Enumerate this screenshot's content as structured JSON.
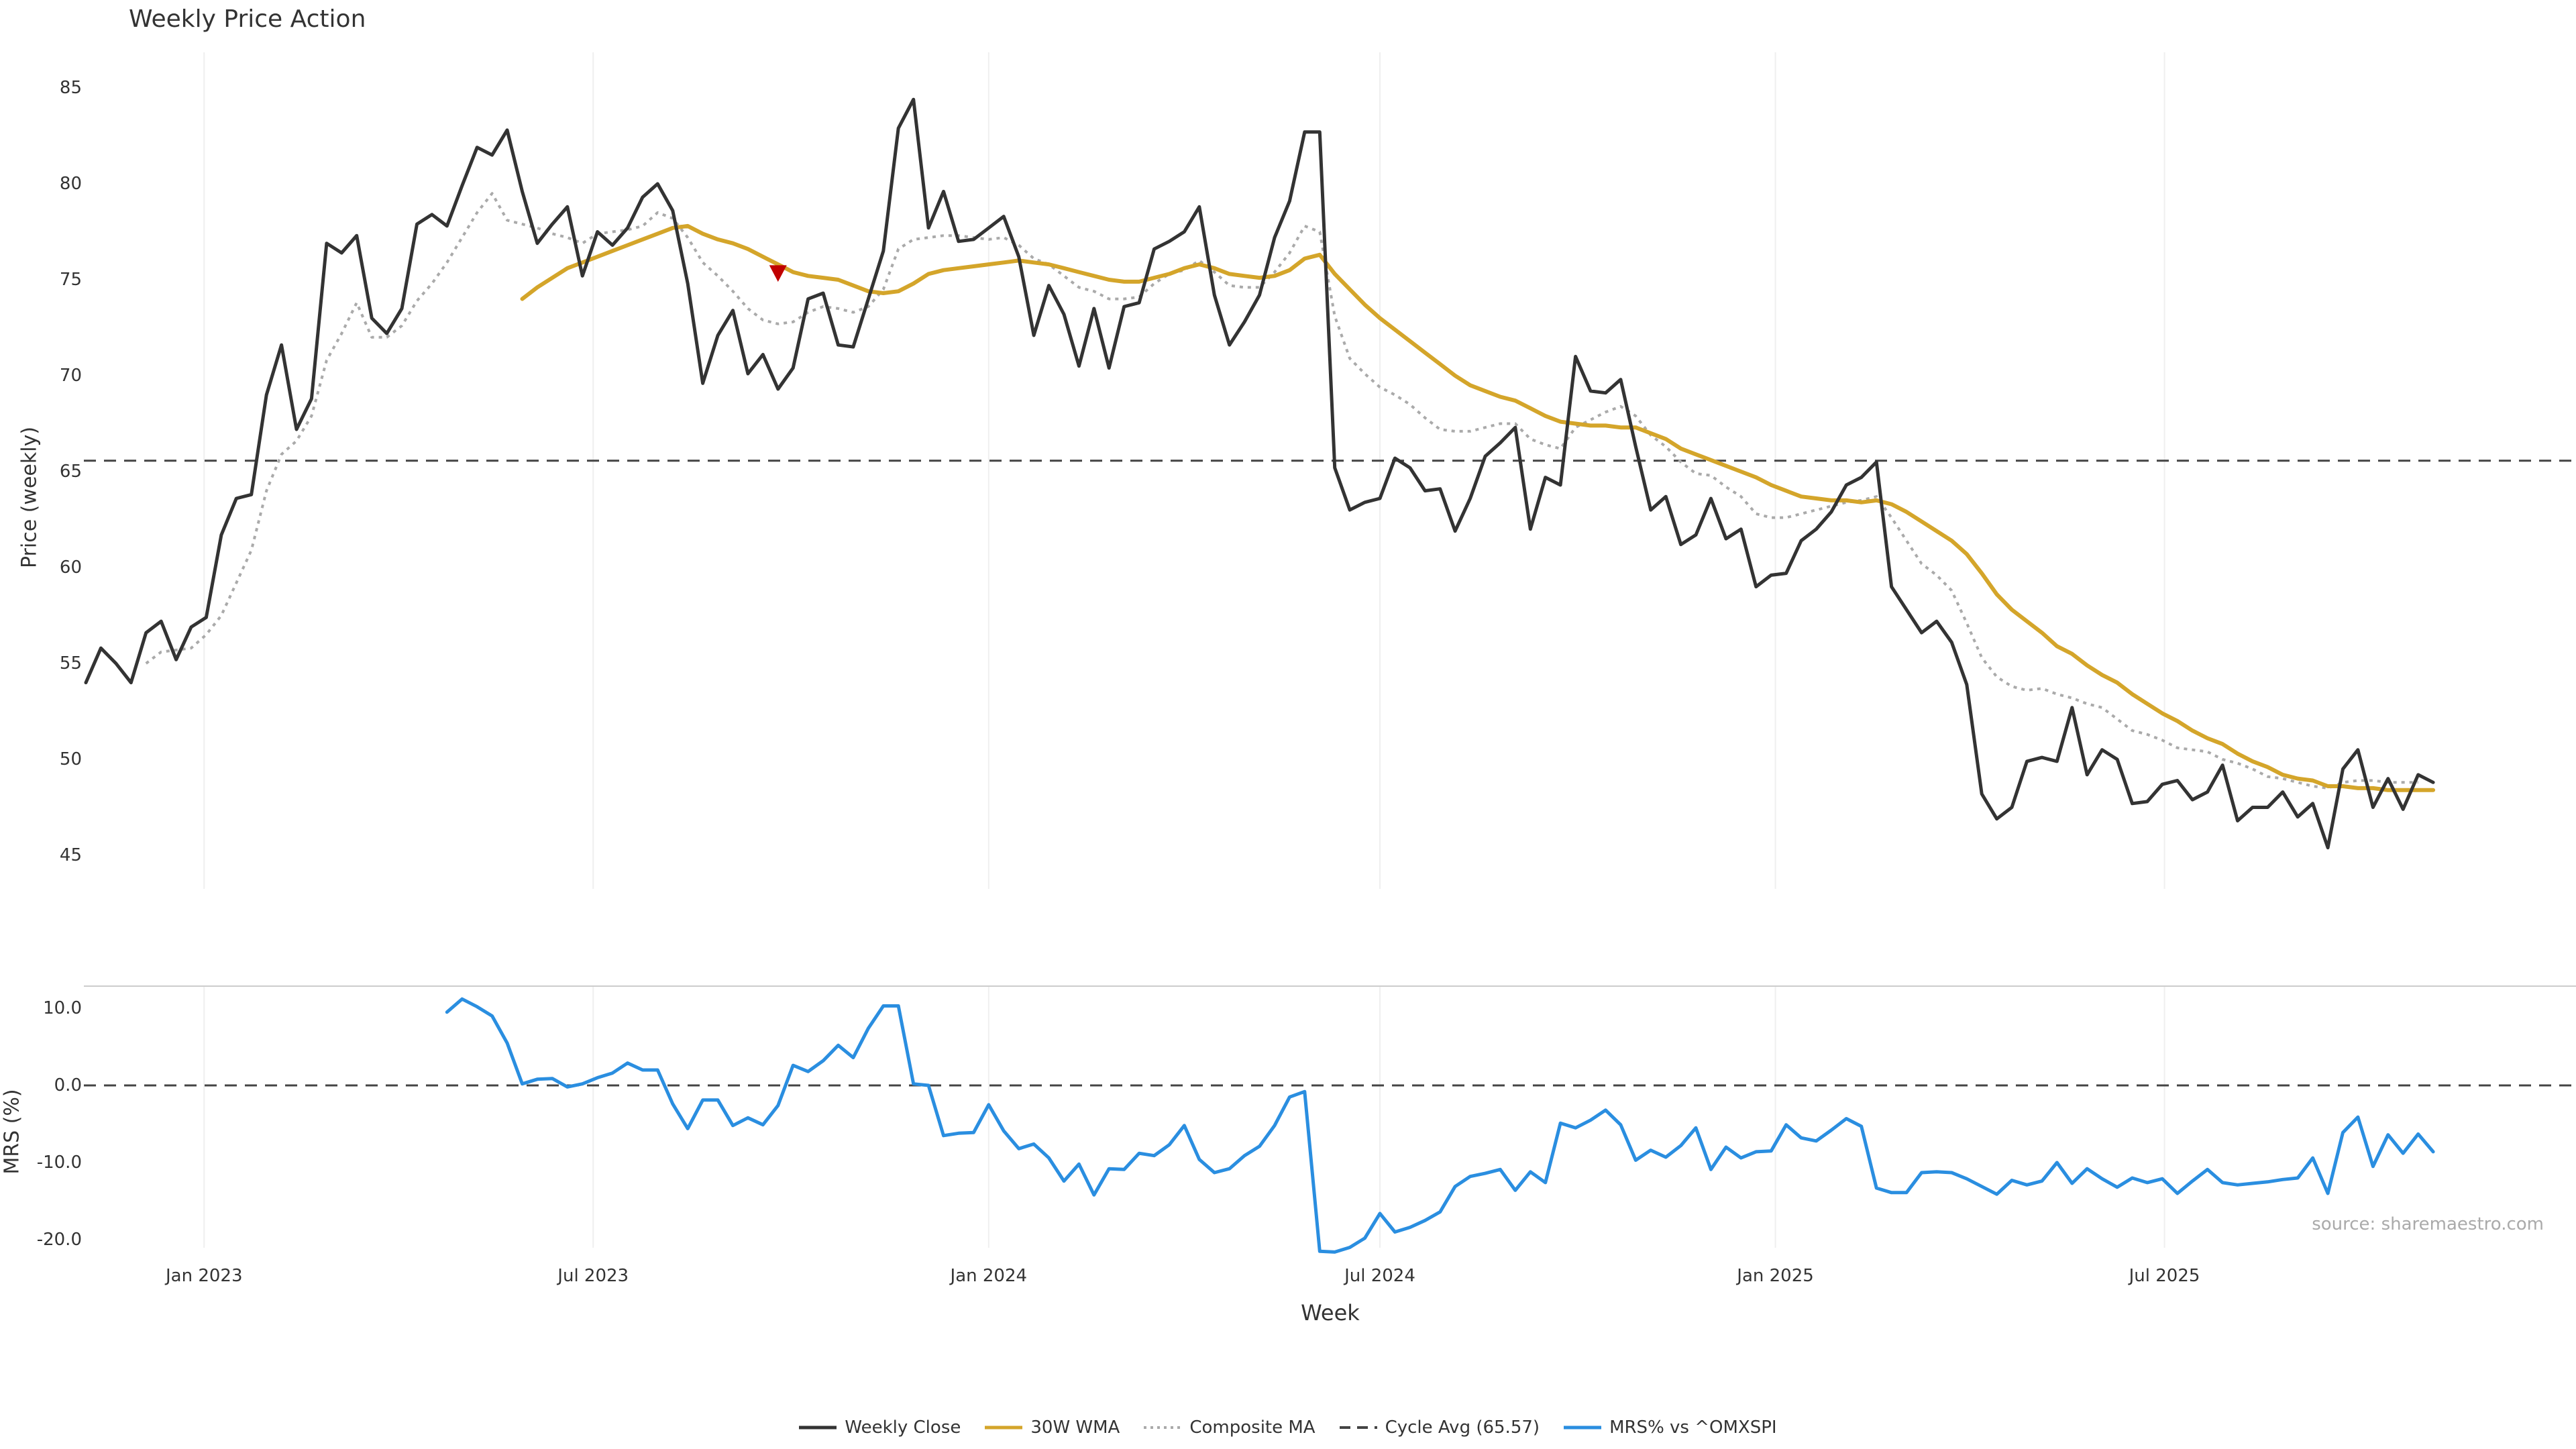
{
  "chart_data": [
    {
      "type": "line",
      "title": "Weekly Price Action",
      "ylabel": "Price (weekly)",
      "ylim": [
        43,
        87
      ],
      "yticks": [
        45,
        50,
        55,
        60,
        65,
        70,
        75,
        80,
        85
      ],
      "grid": "vertical",
      "x_start": "2022-11-07",
      "x_step_days": 7,
      "annotations": [
        {
          "type": "marker",
          "shape": "triangle-down",
          "date": "2023-09-25",
          "value": 75.3,
          "color": "#c00000"
        }
      ],
      "series": [
        {
          "name": "Weekly Close",
          "color": "#333333",
          "style": "solid",
          "values": [
            54.0,
            55.8,
            55.0,
            54.0,
            56.6,
            57.2,
            55.2,
            56.9,
            57.4,
            61.7,
            63.6,
            63.8,
            69.0,
            71.6,
            67.2,
            68.8,
            76.9,
            76.4,
            77.3,
            73.0,
            72.2,
            73.5,
            77.9,
            78.4,
            77.8,
            79.9,
            81.9,
            81.5,
            82.8,
            79.6,
            76.9,
            77.9,
            78.8,
            75.2,
            77.5,
            76.8,
            77.7,
            79.3,
            80.0,
            78.6,
            74.8,
            69.6,
            72.1,
            73.4,
            70.1,
            71.1,
            69.3,
            70.4,
            74.0,
            74.3,
            71.6,
            71.5,
            74.0,
            76.5,
            82.9,
            84.4,
            77.7,
            79.6,
            77.0,
            77.1,
            77.7,
            78.3,
            76.2,
            72.1,
            74.7,
            73.2,
            70.5,
            73.5,
            70.4,
            73.6,
            73.8,
            76.6,
            77.0,
            77.5,
            78.8,
            74.2,
            71.6,
            72.8,
            74.2,
            77.2,
            79.1,
            82.7,
            82.7,
            65.2,
            63.0,
            63.4,
            63.6,
            65.7,
            65.2,
            64.0,
            64.1,
            61.9,
            63.6,
            65.8,
            66.5,
            67.3,
            62.0,
            64.7,
            64.3,
            71.0,
            69.2,
            69.1,
            69.8,
            66.3,
            63.0,
            63.7,
            61.2,
            61.7,
            63.6,
            61.5,
            62.0,
            59.0,
            59.6,
            59.7,
            61.4,
            62.0,
            62.9,
            64.3,
            64.7,
            65.5,
            59.0,
            57.8,
            56.6,
            57.2,
            56.1,
            53.9,
            48.2,
            46.9,
            47.5,
            49.9,
            50.1,
            49.9,
            52.7,
            49.2,
            50.5,
            50.0,
            47.7,
            47.8,
            48.7,
            48.9,
            47.9,
            48.3,
            49.7,
            46.8,
            47.5,
            47.5,
            48.3,
            47.0,
            47.7,
            45.4,
            49.5,
            50.5,
            47.5,
            49.0,
            47.4,
            49.2,
            48.8
          ]
        },
        {
          "name": "30W WMA",
          "color": "#d4a52a",
          "style": "solid",
          "values": [
            null,
            null,
            null,
            null,
            null,
            null,
            null,
            null,
            null,
            null,
            null,
            null,
            null,
            null,
            null,
            null,
            null,
            null,
            null,
            null,
            null,
            null,
            null,
            null,
            null,
            null,
            null,
            null,
            null,
            74.0,
            74.6,
            75.1,
            75.6,
            75.9,
            76.2,
            76.5,
            76.8,
            77.1,
            77.4,
            77.7,
            77.8,
            77.4,
            77.1,
            76.9,
            76.6,
            76.2,
            75.8,
            75.4,
            75.2,
            75.1,
            75.0,
            74.7,
            74.4,
            74.3,
            74.4,
            74.8,
            75.3,
            75.5,
            75.6,
            75.7,
            75.8,
            75.9,
            76.0,
            75.9,
            75.8,
            75.6,
            75.4,
            75.2,
            75.0,
            74.9,
            74.9,
            75.1,
            75.3,
            75.6,
            75.8,
            75.6,
            75.3,
            75.2,
            75.1,
            75.2,
            75.5,
            76.1,
            76.3,
            75.3,
            74.5,
            73.7,
            73.0,
            72.4,
            71.8,
            71.2,
            70.6,
            70.0,
            69.5,
            69.2,
            68.9,
            68.7,
            68.3,
            67.9,
            67.6,
            67.5,
            67.4,
            67.4,
            67.3,
            67.3,
            67.0,
            66.7,
            66.2,
            65.9,
            65.6,
            65.3,
            65.0,
            64.7,
            64.3,
            64.0,
            63.7,
            63.6,
            63.5,
            63.5,
            63.4,
            63.5,
            63.3,
            62.9,
            62.4,
            61.9,
            61.4,
            60.7,
            59.7,
            58.6,
            57.8,
            57.2,
            56.6,
            55.9,
            55.5,
            54.9,
            54.4,
            54.0,
            53.4,
            52.9,
            52.4,
            52.0,
            51.5,
            51.1,
            50.8,
            50.3,
            49.9,
            49.6,
            49.2,
            49.0,
            48.9,
            48.6,
            48.6,
            48.5,
            48.5,
            48.4,
            48.4,
            48.4,
            48.4
          ]
        },
        {
          "name": "Composite MA",
          "color": "#aaaaaa",
          "style": "dotted",
          "values": [
            null,
            null,
            null,
            null,
            55.0,
            55.6,
            55.7,
            55.8,
            56.5,
            57.5,
            59.2,
            60.9,
            64.0,
            65.9,
            66.6,
            67.9,
            70.8,
            72.2,
            73.8,
            72.0,
            72.0,
            72.6,
            73.9,
            74.8,
            75.9,
            77.2,
            78.5,
            79.5,
            78.1,
            77.9,
            77.7,
            77.4,
            77.2,
            76.9,
            77.4,
            77.5,
            77.6,
            77.8,
            78.5,
            78.2,
            77.2,
            75.9,
            75.2,
            74.4,
            73.5,
            72.9,
            72.7,
            72.8,
            73.3,
            73.6,
            73.5,
            73.3,
            73.6,
            74.5,
            76.6,
            77.1,
            77.2,
            77.3,
            77.3,
            77.2,
            77.1,
            77.2,
            76.8,
            76.1,
            75.8,
            75.2,
            74.6,
            74.4,
            74.0,
            74.0,
            74.1,
            74.8,
            75.3,
            75.5,
            76.0,
            75.4,
            74.7,
            74.6,
            74.6,
            75.4,
            76.4,
            77.8,
            77.5,
            73.1,
            70.9,
            70.1,
            69.4,
            69.0,
            68.5,
            67.8,
            67.2,
            67.1,
            67.1,
            67.3,
            67.5,
            67.5,
            66.7,
            66.4,
            66.2,
            67.3,
            67.7,
            68.1,
            68.4,
            67.9,
            66.9,
            66.3,
            65.5,
            64.9,
            64.8,
            64.2,
            63.7,
            62.8,
            62.6,
            62.6,
            62.8,
            63.0,
            63.2,
            63.4,
            63.5,
            63.7,
            62.6,
            61.4,
            60.2,
            59.6,
            58.8,
            57.1,
            55.3,
            54.3,
            53.8,
            53.6,
            53.7,
            53.4,
            53.2,
            52.9,
            52.7,
            52.1,
            51.5,
            51.3,
            51.0,
            50.6,
            50.5,
            50.4,
            50.0,
            49.8,
            49.5,
            49.1,
            49.0,
            48.8,
            48.6,
            48.5,
            48.8,
            48.9,
            48.9,
            48.8,
            48.8,
            48.8
          ]
        },
        {
          "name": "Cycle Avg (65.57)",
          "color": "#444444",
          "style": "dashed",
          "constant": 65.57
        }
      ]
    },
    {
      "type": "line",
      "ylabel": "MRS (%)",
      "ylim": [
        -22,
        12.5
      ],
      "yticks": [
        10.0,
        0.0,
        -10.0,
        -20.0
      ],
      "ytick_labels": [
        "10.0",
        "0.0",
        "-10.0",
        "-20.0"
      ],
      "xlabel": "Week",
      "xticks": [
        "Jan 2023",
        "Jul 2023",
        "Jan 2024",
        "Jul 2024",
        "Jan 2025",
        "Jul 2025"
      ],
      "xtick_dates": [
        "2023-01-01",
        "2023-07-01",
        "2024-01-01",
        "2024-07-01",
        "2025-01-01",
        "2025-07-01"
      ],
      "reference_line": 0.0,
      "series": [
        {
          "name": "MRS% vs ^OMXSPI",
          "color": "#2a8ee0",
          "style": "solid",
          "values": [
            null,
            null,
            null,
            null,
            null,
            null,
            null,
            null,
            null,
            null,
            null,
            null,
            null,
            null,
            null,
            null,
            null,
            null,
            null,
            null,
            null,
            null,
            null,
            null,
            9.5,
            11.2,
            10.2,
            9.0,
            5.5,
            0.2,
            0.8,
            0.9,
            -0.2,
            0.2,
            1.0,
            1.6,
            2.9,
            2.0,
            2.0,
            -2.4,
            -5.6,
            -1.9,
            -1.9,
            -5.2,
            -4.2,
            -5.1,
            -2.6,
            2.6,
            1.8,
            3.2,
            5.2,
            3.6,
            7.4,
            10.3,
            10.3,
            0.2,
            0.0,
            -6.5,
            -6.2,
            -6.1,
            -2.5,
            -5.9,
            -8.2,
            -7.6,
            -9.4,
            -12.4,
            -10.2,
            -14.2,
            -10.8,
            -10.9,
            -8.8,
            -9.1,
            -7.7,
            -5.2,
            -9.6,
            -11.3,
            -10.8,
            -9.1,
            -7.9,
            -5.2,
            -1.5,
            -0.8,
            -21.5,
            -21.6,
            -21.0,
            -19.8,
            -16.6,
            -19.0,
            -18.4,
            -17.5,
            -16.4,
            -13.1,
            -11.8,
            -11.4,
            -10.9,
            -13.6,
            -11.2,
            -12.6,
            -4.9,
            -5.5,
            -4.5,
            -3.2,
            -5.1,
            -9.7,
            -8.4,
            -9.3,
            -7.8,
            -5.5,
            -10.9,
            -8.0,
            -9.4,
            -8.6,
            -8.5,
            -5.1,
            -6.8,
            -7.2,
            -5.8,
            -4.3,
            -5.3,
            -13.3,
            -13.9,
            -13.9,
            -11.3,
            -11.2,
            -11.3,
            -12.1,
            -13.1,
            -14.1,
            -12.3,
            -12.9,
            -12.4,
            -10.0,
            -12.7,
            -10.8,
            -12.1,
            -13.2,
            -12.0,
            -12.6,
            -12.1,
            -14.0,
            -12.4,
            -10.9,
            -12.6,
            -12.9,
            -12.7,
            -12.5,
            -12.2,
            -12.0,
            -9.4,
            -14.0,
            -6.1,
            -4.1,
            -10.5,
            -6.4,
            -8.8,
            -6.3,
            -8.6
          ]
        }
      ]
    }
  ],
  "watermark": "source: sharemaestro.com"
}
